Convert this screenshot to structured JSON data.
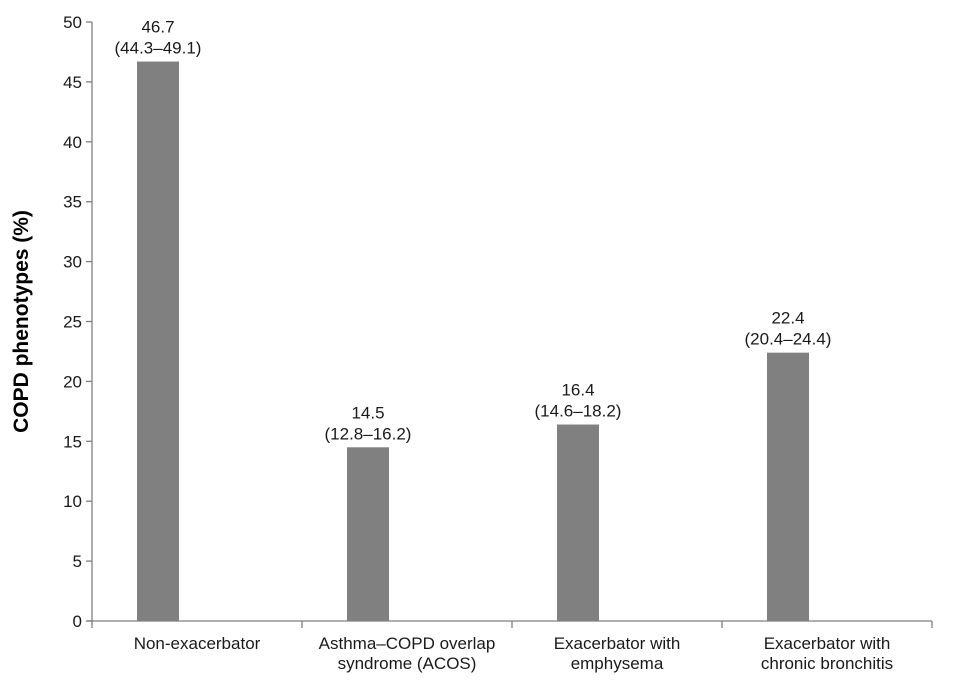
{
  "chart_data": {
    "type": "bar",
    "title": "",
    "xlabel": "",
    "ylabel": "COPD phenotypes (%)",
    "ylim": [
      0,
      50
    ],
    "yticks": [
      0,
      5,
      10,
      15,
      20,
      25,
      30,
      35,
      40,
      45,
      50
    ],
    "grid": false,
    "categories": [
      [
        "Non-exacerbator"
      ],
      [
        "Asthma–COPD overlap",
        "syndrome (ACOS)"
      ],
      [
        "Exacerbator with",
        "emphysema"
      ],
      [
        "Exacerbator with",
        "chronic bronchitis"
      ]
    ],
    "values": [
      46.7,
      14.5,
      16.4,
      22.4
    ],
    "data_labels": [
      "46.7",
      "14.5",
      "16.4",
      "22.4"
    ],
    "ci_labels": [
      "(44.3–49.1)",
      "(12.8–16.2)",
      "(14.6–18.2)",
      "(20.4–24.4)"
    ],
    "colors": {
      "bar": "#808080",
      "axis": "#7f7f7f",
      "text": "#1a1a1a"
    }
  }
}
